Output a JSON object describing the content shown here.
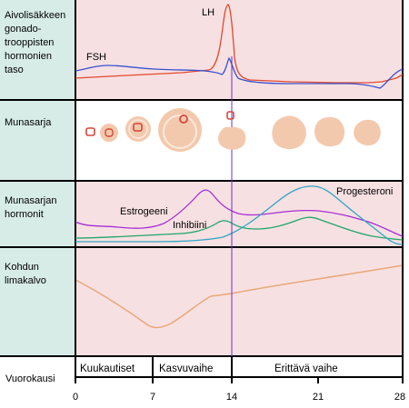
{
  "rows": [
    {
      "label_lines": [
        "Aivolisäkkeen",
        "gonado-",
        "trooppisten",
        "hormonien",
        "taso"
      ]
    },
    {
      "label_lines": [
        "Munasarja"
      ]
    },
    {
      "label_lines": [
        "Munasarjan",
        "hormonit"
      ]
    },
    {
      "label_lines": [
        "Kohdun",
        "limakalvo"
      ]
    }
  ],
  "axis": {
    "label": "Vuorokausi",
    "ticks": [
      "0",
      "7",
      "14",
      "21",
      "28"
    ]
  },
  "phases": [
    {
      "label": "Kuukautiset"
    },
    {
      "label": "Kasvuvaihe"
    },
    {
      "label": "Erittävä vaihe"
    }
  ],
  "curves": {
    "fsh": {
      "label": "FSH",
      "color": "#3a52d0"
    },
    "lh": {
      "label": "LH",
      "color": "#e14a2c"
    },
    "estrogen": {
      "label": "Estrogeeni",
      "color": "#a52fd6"
    },
    "inhibin": {
      "label": "Inhibiini",
      "color": "#1fa66a"
    },
    "progesterone": {
      "label": "Progesteroni",
      "color": "#2fa6c4"
    },
    "endometrium": {
      "color": "#e8a878"
    }
  },
  "colors": {
    "label_column": "#d7ece6",
    "panel_pink": "#f7e0e2",
    "ovary_panel": "#ffffff",
    "follicle_fill": "#f3c9ad",
    "follicle_ring": "#d5473a",
    "ovulation_line": "#6a2fd8"
  }
}
